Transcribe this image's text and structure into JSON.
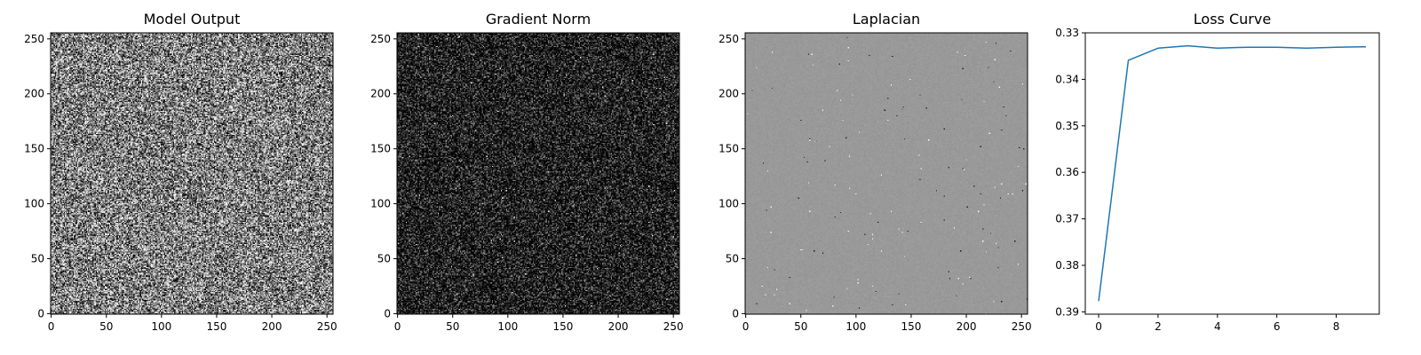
{
  "chart_data": [
    {
      "type": "heatmap",
      "title": "Model Output",
      "colormap": "gray",
      "pattern": "uniform-noise",
      "brightness_mean": 0.5,
      "brightness_spread": 0.5,
      "x_ticks": [
        0,
        50,
        100,
        150,
        200,
        250
      ],
      "y_ticks": [
        0,
        50,
        100,
        150,
        200,
        250
      ],
      "xlim": [
        -0.5,
        255.5
      ],
      "ylim": [
        255.5,
        -0.5
      ]
    },
    {
      "type": "heatmap",
      "title": "Gradient Norm",
      "colormap": "gray",
      "pattern": "sparse-bright-noise",
      "brightness_mean": 0.1,
      "brightness_spread": 0.12,
      "x_ticks": [
        0,
        50,
        100,
        150,
        200,
        250
      ],
      "y_ticks": [
        0,
        50,
        100,
        150,
        200,
        250
      ],
      "xlim": [
        -0.5,
        255.5
      ],
      "ylim": [
        255.5,
        -0.5
      ]
    },
    {
      "type": "heatmap",
      "title": "Laplacian",
      "colormap": "gray",
      "pattern": "mid-gray-sparse-outliers",
      "brightness_mean": 0.6,
      "brightness_spread": 0.02,
      "x_ticks": [
        0,
        50,
        100,
        150,
        200,
        250
      ],
      "y_ticks": [
        0,
        50,
        100,
        150,
        200,
        250
      ],
      "xlim": [
        -0.5,
        255.5
      ],
      "ylim": [
        255.5,
        -0.5
      ]
    },
    {
      "type": "line",
      "title": "Loss Curve",
      "x": [
        0,
        1,
        2,
        3,
        4,
        5,
        6,
        7,
        8,
        9
      ],
      "series": [
        {
          "values": [
            0.3877,
            0.3359,
            0.3333,
            0.3328,
            0.3333,
            0.3331,
            0.3331,
            0.3333,
            0.3331,
            0.333
          ],
          "color": "#1f77b4"
        }
      ],
      "x_ticks": [
        0,
        2,
        4,
        6,
        8
      ],
      "y_ticks": [
        0.33,
        0.34,
        0.35,
        0.36,
        0.37,
        0.38,
        0.39
      ],
      "y_tick_labels": [
        "0.33",
        "0.34",
        "0.35",
        "0.36",
        "0.37",
        "0.38",
        "0.39"
      ],
      "xlim": [
        -0.45,
        9.45
      ],
      "ylim": [
        0.33,
        0.3905
      ]
    }
  ]
}
